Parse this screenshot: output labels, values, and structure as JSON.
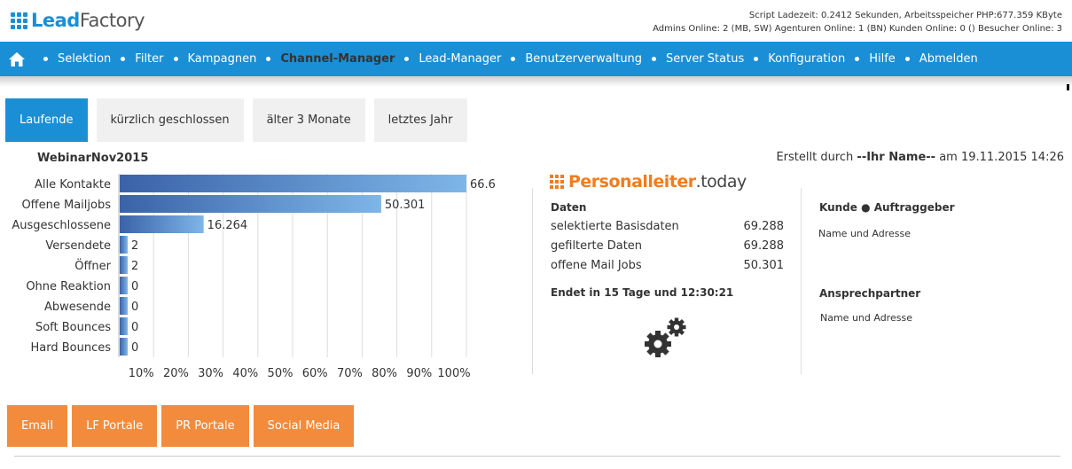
{
  "header": {
    "logo_lead": "Lead",
    "logo_factory": "Factory",
    "stats_line1": "Script Ladezeit: 0.2412 Sekunden, Arbeitsspeicher PHP:677.359 KByte",
    "stats_line2": "Admins Online: 2 (MB, SW) Agenturen Online: 1 (BN) Kunden Online: 0 () Besucher Online: 3"
  },
  "nav": {
    "items": [
      {
        "label": "Selektion"
      },
      {
        "label": "Filter"
      },
      {
        "label": "Kampagnen"
      },
      {
        "label": "Channel-Manager"
      },
      {
        "label": "Lead-Manager"
      },
      {
        "label": "Benutzerverwaltung"
      },
      {
        "label": "Server Status"
      },
      {
        "label": "Konfiguration"
      },
      {
        "label": "Hilfe"
      },
      {
        "label": "Abmelden"
      }
    ]
  },
  "tabs": [
    {
      "label": "Laufende"
    },
    {
      "label": "kürzlich geschlossen"
    },
    {
      "label": "älter 3 Monate"
    },
    {
      "label": "letztes Jahr"
    }
  ],
  "campaign": {
    "name": "WebinarNov2015",
    "created_prefix": "Erstellt durch",
    "created_by": "--Ihr Name--",
    "created_at": "am 19.11.2015 14:26"
  },
  "chart_data": {
    "type": "bar",
    "orientation": "horizontal",
    "categories": [
      "Alle Kontakte",
      "Offene Mailjobs",
      "Ausgeschlossene",
      "Versendete",
      "Öffner",
      "Ohne Reaktion",
      "Abwesende",
      "Soft Bounces",
      "Hard Bounces"
    ],
    "values": [
      66637,
      50301,
      16264,
      2,
      2,
      0,
      0,
      0,
      0
    ],
    "value_labels": [
      "66.637",
      "50.301",
      "16.264",
      "2",
      "2",
      "0",
      "0",
      "0",
      "0"
    ],
    "x_ticks": [
      "10%",
      "20%",
      "30%",
      "40%",
      "50%",
      "60%",
      "70%",
      "80%",
      "90%",
      "100%"
    ],
    "xlim_percent": [
      0,
      100
    ],
    "grid": true
  },
  "panel": {
    "logo_bold": "Personalleiter",
    "logo_thin": ".today",
    "data_title": "Daten",
    "rows": [
      {
        "label": "selektierte Basisdaten",
        "value": "69.288"
      },
      {
        "label": "gefilterte Daten",
        "value": "69.288"
      },
      {
        "label": "offene Mail Jobs",
        "value": "50.301"
      }
    ],
    "ends": "Endet in 15 Tage und 12:30:21"
  },
  "client": {
    "title": "Kunde ● Auftraggeber",
    "address": "Name und Adresse",
    "contact_title": "Ansprechpartner",
    "contact_address": "Name und Adresse"
  },
  "buttons": [
    {
      "label": "Email"
    },
    {
      "label": "LF Portale"
    },
    {
      "label": "PR Portale"
    },
    {
      "label": "Social Media"
    }
  ],
  "colors": {
    "primary": "#1a8fd6",
    "accent": "#f38b3c",
    "bar_dark": "#3a62a8",
    "bar_light": "#7eb6e8"
  }
}
